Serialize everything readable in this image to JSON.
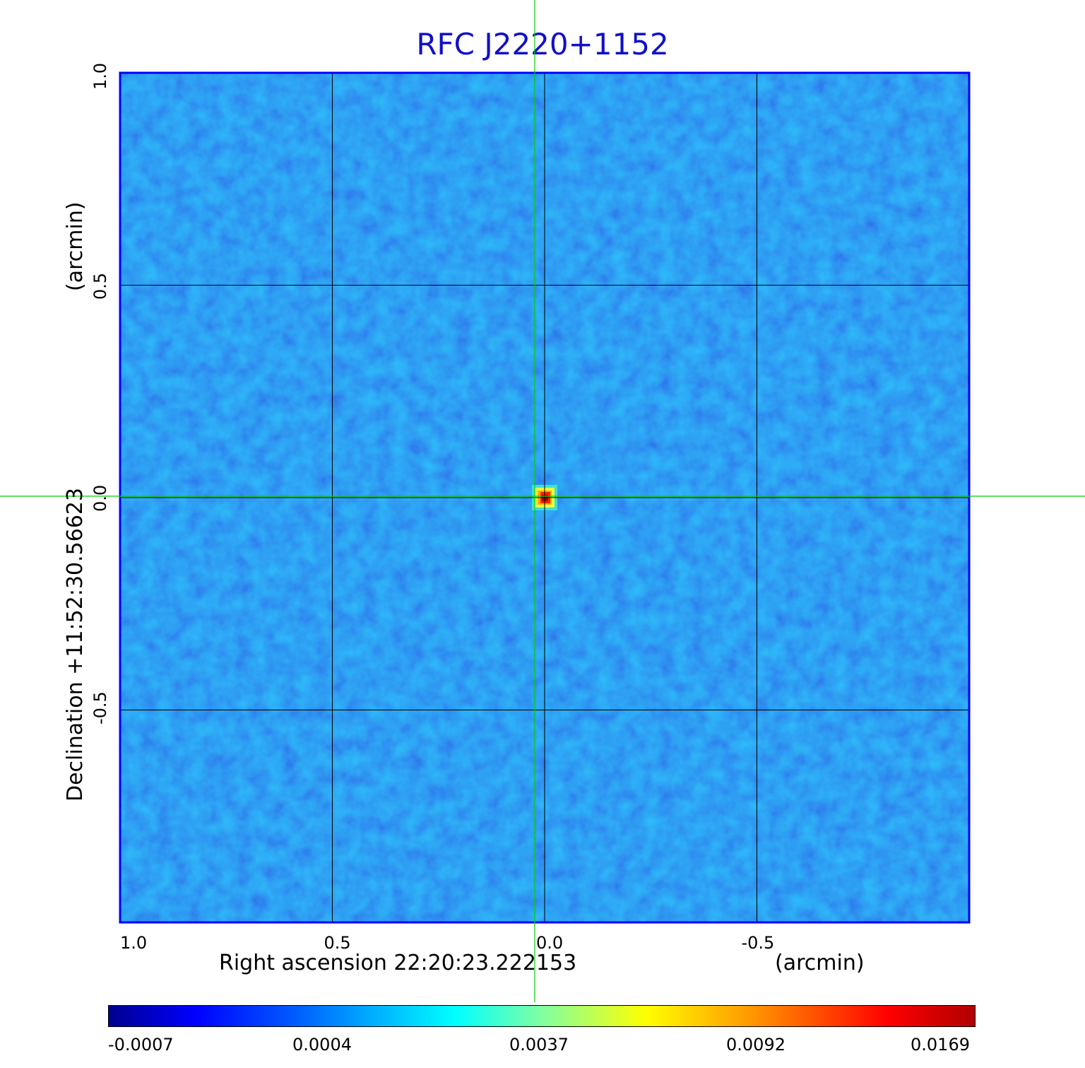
{
  "chart_data": {
    "type": "heatmap",
    "title": "RFC J2220+1152",
    "xlabel": "Right ascension  22:20:23.222153",
    "xunit": "(arcmin)",
    "ylabel": "Declination  +11:52:30.56623",
    "yunit": "(arcmin)",
    "x_ticks": [
      "1.0",
      "0.5",
      "0.0",
      "-0.5"
    ],
    "x_tick_values": [
      1.0,
      0.5,
      0.0,
      -0.5
    ],
    "y_ticks": [
      "1.0",
      "0.5",
      "0.0",
      "-0.5"
    ],
    "y_tick_values": [
      1.0,
      0.5,
      0.0,
      -0.5
    ],
    "xlim": [
      1.0,
      -1.0
    ],
    "ylim": [
      -1.0,
      1.0
    ],
    "grid": true,
    "crosshair": {
      "x": 0.0,
      "y": 0.0,
      "color": "#00d000"
    },
    "peak": {
      "x": 0.0,
      "y": 0.0,
      "value": 0.0169
    },
    "colormap": "jet",
    "colorbar_ticks": [
      "-0.0007",
      "0.0004",
      "0.0037",
      "0.0092",
      "0.0169"
    ],
    "colorbar_range": [
      -0.0007,
      0.0169
    ]
  },
  "colors": {
    "title": "#1010c8",
    "frame": "#0000ff",
    "background_map": "#1a6cf0",
    "grid": "#000000",
    "crosshair": "#00d000"
  }
}
